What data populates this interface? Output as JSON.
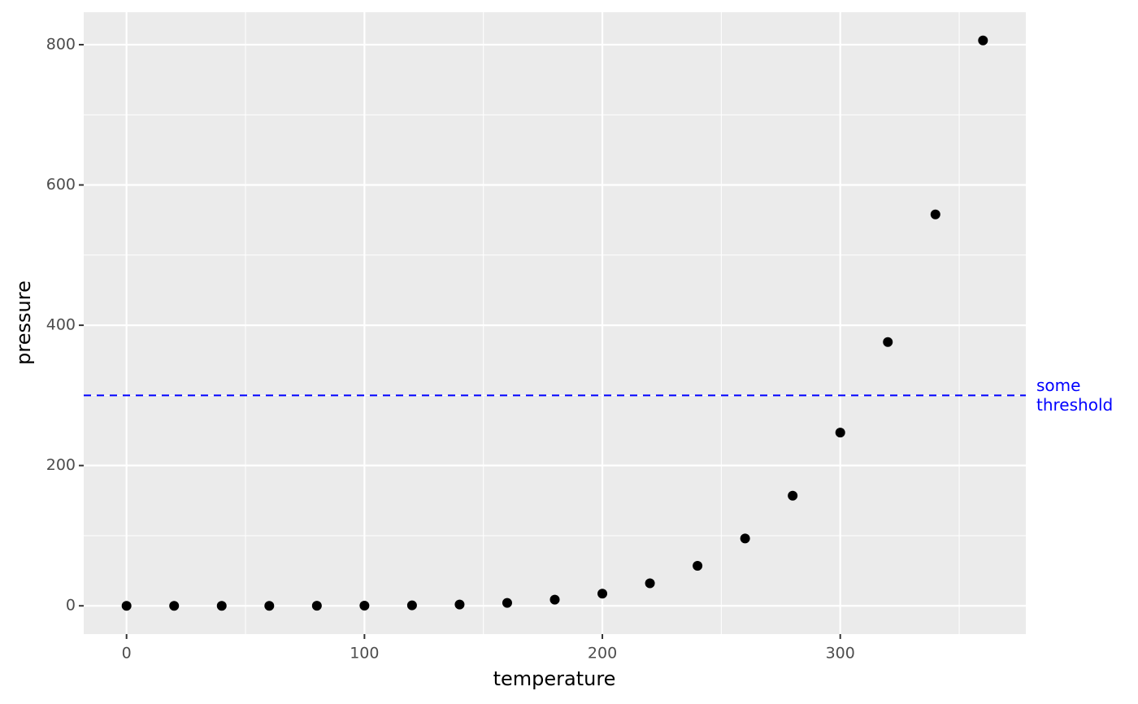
{
  "chart_data": {
    "type": "scatter",
    "x_label": "temperature",
    "y_label": "pressure",
    "x": [
      0,
      20,
      40,
      60,
      80,
      100,
      120,
      140,
      160,
      180,
      200,
      220,
      240,
      260,
      280,
      300,
      320,
      340,
      360
    ],
    "series": [
      {
        "color": "#000000",
        "values": [
          0.0002,
          0.0012,
          0.006,
          0.03,
          0.09,
          0.27,
          0.75,
          1.85,
          4.2,
          8.8,
          17.3,
          32.1,
          57,
          96,
          157,
          247,
          376,
          558,
          806
        ]
      }
    ],
    "xlim": [
      -18,
      378
    ],
    "ylim": [
      -40.3,
      846.3
    ],
    "xticks": [
      0,
      100,
      200,
      300
    ],
    "yticks": [
      0,
      200,
      400,
      600,
      800
    ],
    "xminor": [
      50,
      150,
      250,
      350
    ],
    "yminor": [
      100,
      300,
      500,
      700
    ],
    "grid": true,
    "hline": {
      "value": 300,
      "color": "#0000ff",
      "label": [
        "some",
        "threshold"
      ]
    }
  }
}
